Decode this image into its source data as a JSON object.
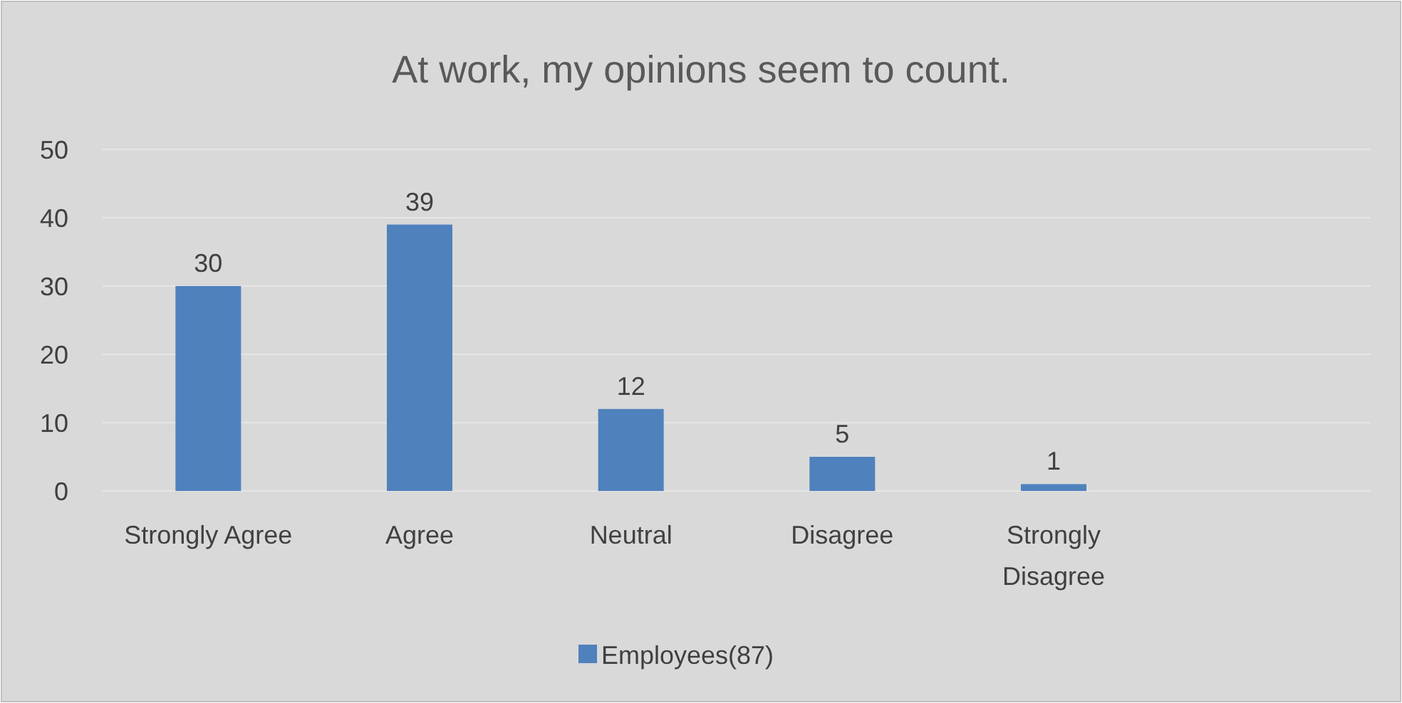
{
  "chart_data": {
    "type": "bar",
    "title": "At work, my opinions seem to count.",
    "categories": [
      "Strongly Agree",
      "Agree",
      "Neutral",
      "Disagree",
      "Strongly Disagree",
      null
    ],
    "series": [
      {
        "name": "Employees(87)",
        "color": "#4f81bd",
        "values": [
          30,
          39,
          12,
          5,
          1,
          null
        ]
      }
    ],
    "ylim": [
      0,
      50
    ],
    "yticks": [
      0,
      10,
      20,
      30,
      40,
      50
    ],
    "grid": "y",
    "data_labels": true,
    "legend": "bottom"
  }
}
